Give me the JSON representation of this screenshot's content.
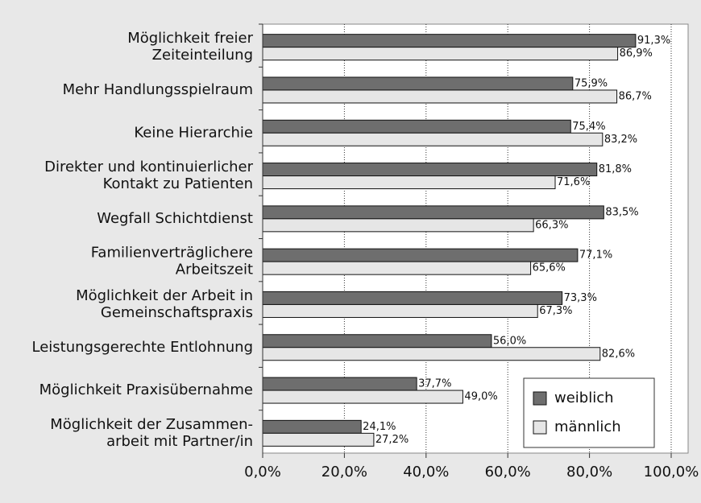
{
  "chart_data": {
    "type": "hbar",
    "categories": [
      [
        "Möglichkeit freier",
        "Zeiteinteilung"
      ],
      [
        "Mehr Handlungsspielraum"
      ],
      [
        "Keine Hierarchie"
      ],
      [
        "Direkter und kontinuierlicher",
        "Kontakt zu Patienten"
      ],
      [
        "Wegfall Schichtdienst"
      ],
      [
        "Familienverträglichere",
        "Arbeitszeit"
      ],
      [
        "Möglichkeit der Arbeit in",
        "Gemeinschaftspraxis"
      ],
      [
        "Leistungsgerechte Entlohnung"
      ],
      [
        "Möglichkeit Praxisübernahme"
      ],
      [
        "Möglichkeit der Zusammen-",
        "arbeit mit Partner/in"
      ]
    ],
    "series": [
      {
        "name": "weiblich",
        "color": "#6e6e6e",
        "values": [
          91.3,
          75.9,
          75.4,
          81.8,
          83.5,
          77.1,
          73.3,
          56.0,
          37.7,
          24.1
        ],
        "value_labels": [
          "91,3%",
          "75,9%",
          "75,4%",
          "81,8%",
          "83,5%",
          "77,1%",
          "73,3%",
          "56,0%",
          "37,7%",
          "24,1%"
        ]
      },
      {
        "name": "männlich",
        "color": "#e6e6e6",
        "values": [
          86.9,
          86.7,
          83.2,
          71.6,
          66.3,
          65.6,
          67.3,
          82.6,
          49.0,
          27.2
        ],
        "value_labels": [
          "86,9%",
          "86,7%",
          "83,2%",
          "71,6%",
          "66,3%",
          "65,6%",
          "67,3%",
          "82,6%",
          "49,0%",
          "27,2%"
        ]
      }
    ],
    "xlim": [
      0,
      100
    ],
    "xticks": [
      {
        "value": 0,
        "label": "0,0%"
      },
      {
        "value": 20,
        "label": "20,0%"
      },
      {
        "value": 40,
        "label": "40,0%"
      },
      {
        "value": 60,
        "label": "60,0%"
      },
      {
        "value": 80,
        "label": "80,0%"
      },
      {
        "value": 100,
        "label": "100,0%"
      }
    ],
    "grid": true,
    "legend": "lower right"
  }
}
